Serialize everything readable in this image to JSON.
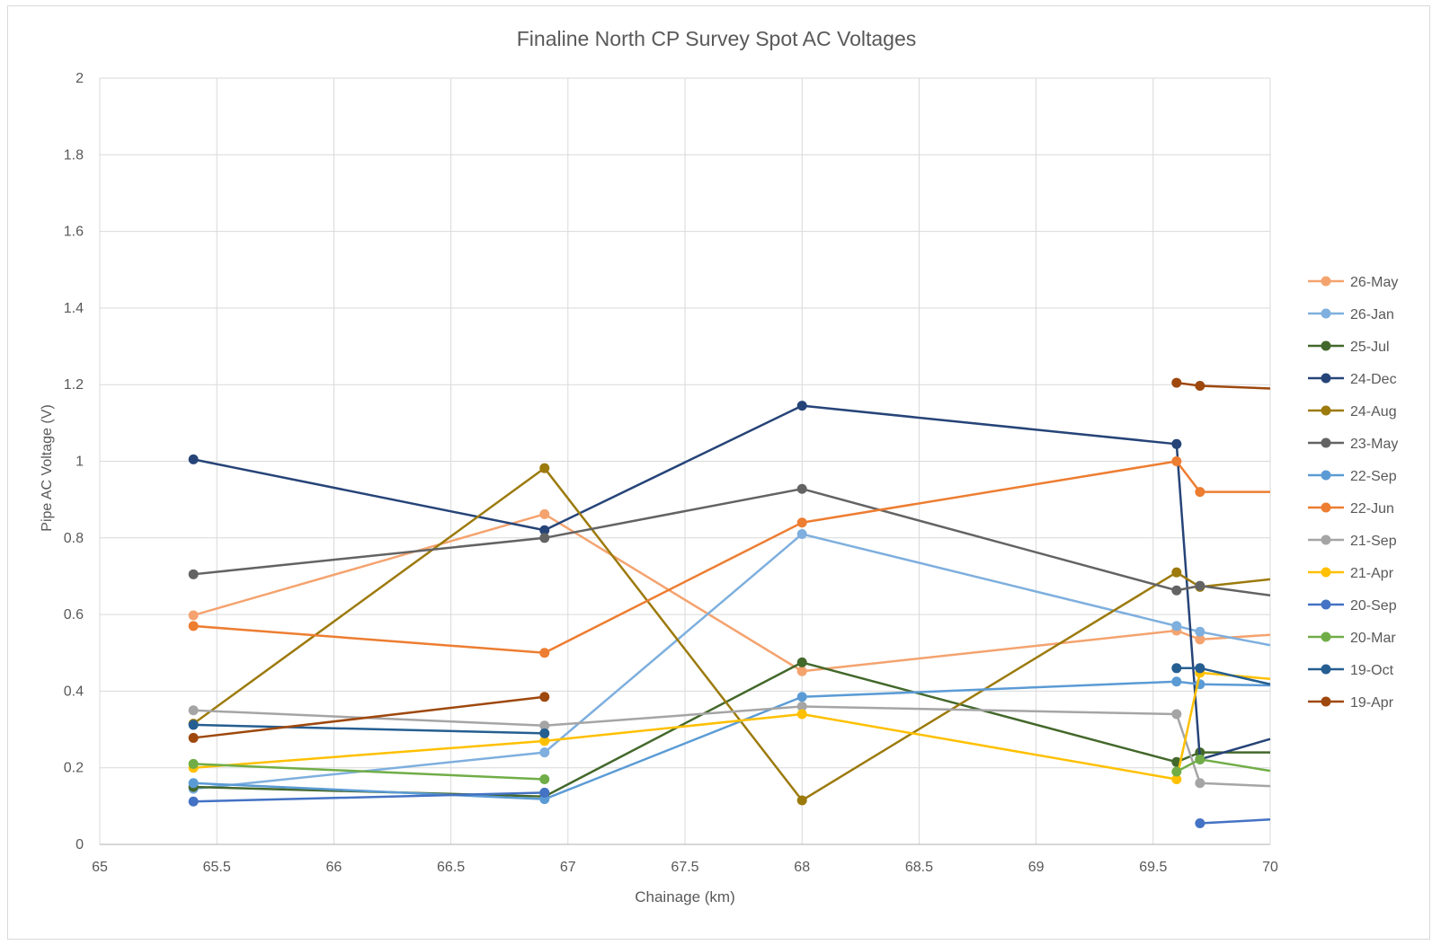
{
  "chart_data": {
    "type": "line",
    "title": "Finaline North CP Survey Spot AC Voltages",
    "xlabel": "Chainage (km)",
    "ylabel": "Pipe AC Voltage (V)",
    "xlim": [
      65,
      70
    ],
    "ylim": [
      0,
      2
    ],
    "x_ticks": [
      "65",
      "65.5",
      "66",
      "66.5",
      "67",
      "67.5",
      "68",
      "68.5",
      "69",
      "69.5",
      "70"
    ],
    "y_ticks": [
      "0",
      "0.2",
      "0.4",
      "0.6",
      "0.8",
      "1",
      "1.2",
      "1.4",
      "1.6",
      "1.8",
      "2"
    ],
    "grid": true,
    "legend_position": "right",
    "series": [
      {
        "name": "26-May",
        "color": "#F4A36F",
        "points": [
          [
            65.4,
            0.598
          ],
          [
            66.9,
            0.862
          ],
          [
            68.0,
            0.452
          ],
          [
            69.6,
            0.558
          ],
          [
            69.7,
            0.535
          ],
          [
            70.0,
            0.547
          ]
        ]
      },
      {
        "name": "26-Jan",
        "color": "#7EAFDE",
        "points": [
          [
            65.4,
            0.145
          ],
          [
            66.9,
            0.24
          ],
          [
            68.0,
            0.81
          ],
          [
            69.6,
            0.57
          ],
          [
            69.7,
            0.555
          ],
          [
            70.0,
            0.52
          ]
        ]
      },
      {
        "name": "25-Jul",
        "color": "#43682B",
        "points": [
          [
            65.4,
            0.15
          ],
          [
            66.9,
            0.125
          ],
          [
            68.0,
            0.475
          ],
          [
            69.6,
            0.215
          ],
          [
            69.7,
            0.24
          ],
          [
            70.0,
            0.24
          ]
        ]
      },
      {
        "name": "24-Dec",
        "color": "#264478",
        "points": [
          [
            65.4,
            1.005
          ],
          [
            66.9,
            0.82
          ],
          [
            68.0,
            1.145
          ],
          [
            69.6,
            1.045
          ],
          [
            69.7,
            0.222
          ],
          [
            70.0,
            0.275
          ]
        ]
      },
      {
        "name": "24-Aug",
        "color": "#9C7A0C",
        "points": [
          [
            65.4,
            0.315
          ],
          [
            66.9,
            0.982
          ],
          [
            68.0,
            0.115
          ],
          [
            69.6,
            0.71
          ],
          [
            69.7,
            0.672
          ],
          [
            70.0,
            0.692
          ]
        ]
      },
      {
        "name": "23-May",
        "color": "#636363",
        "points": [
          [
            65.4,
            0.705
          ],
          [
            66.9,
            0.8
          ],
          [
            68.0,
            0.928
          ],
          [
            69.6,
            0.663
          ],
          [
            69.7,
            0.675
          ],
          [
            70.0,
            0.65
          ]
        ]
      },
      {
        "name": "22-Sep",
        "color": "#5B9BD5",
        "points": [
          [
            65.4,
            0.16
          ],
          [
            66.9,
            0.118
          ],
          [
            68.0,
            0.385
          ],
          [
            69.6,
            0.425
          ],
          [
            69.7,
            0.418
          ],
          [
            70.0,
            0.415
          ]
        ]
      },
      {
        "name": "22-Jun",
        "color": "#ED7D31",
        "points": [
          [
            65.4,
            0.57
          ],
          [
            66.9,
            0.5
          ],
          [
            68.0,
            0.84
          ],
          [
            69.6,
            1.0
          ],
          [
            69.7,
            0.92
          ],
          [
            70.0,
            0.92
          ]
        ]
      },
      {
        "name": "21-Sep",
        "color": "#A5A5A5",
        "points": [
          [
            65.4,
            0.35
          ],
          [
            66.9,
            0.31
          ],
          [
            68.0,
            0.36
          ],
          [
            69.6,
            0.34
          ],
          [
            69.7,
            0.16
          ],
          [
            70.0,
            0.152
          ]
        ]
      },
      {
        "name": "21-Apr",
        "color": "#FFC000",
        "points": [
          [
            65.4,
            0.2
          ],
          [
            66.9,
            0.27
          ],
          [
            68.0,
            0.34
          ],
          [
            69.6,
            0.17
          ],
          [
            69.7,
            0.448
          ],
          [
            70.0,
            0.432
          ]
        ]
      },
      {
        "name": "20-Sep",
        "color": "#4472C4",
        "points": [
          [
            65.4,
            0.112
          ],
          [
            66.9,
            0.135
          ],
          [
            68.0,
            null
          ],
          [
            69.6,
            null
          ],
          [
            69.7,
            0.055
          ],
          [
            70.0,
            0.065
          ]
        ]
      },
      {
        "name": "20-Mar",
        "color": "#70AD47",
        "points": [
          [
            65.4,
            0.21
          ],
          [
            66.9,
            0.17
          ],
          [
            68.0,
            null
          ],
          [
            69.6,
            0.19
          ],
          [
            69.7,
            0.222
          ],
          [
            70.0,
            0.192
          ]
        ]
      },
      {
        "name": "19-Oct",
        "color": "#255E91",
        "points": [
          [
            65.4,
            0.312
          ],
          [
            66.9,
            0.29
          ],
          [
            68.0,
            null
          ],
          [
            69.6,
            0.46
          ],
          [
            69.7,
            0.46
          ],
          [
            70.0,
            0.418
          ]
        ]
      },
      {
        "name": "19-Apr",
        "color": "#9E480E",
        "points": [
          [
            65.4,
            0.278
          ],
          [
            66.9,
            0.385
          ],
          [
            68.0,
            null
          ],
          [
            69.6,
            1.205
          ],
          [
            69.7,
            1.197
          ],
          [
            70.0,
            1.19
          ]
        ]
      }
    ]
  }
}
